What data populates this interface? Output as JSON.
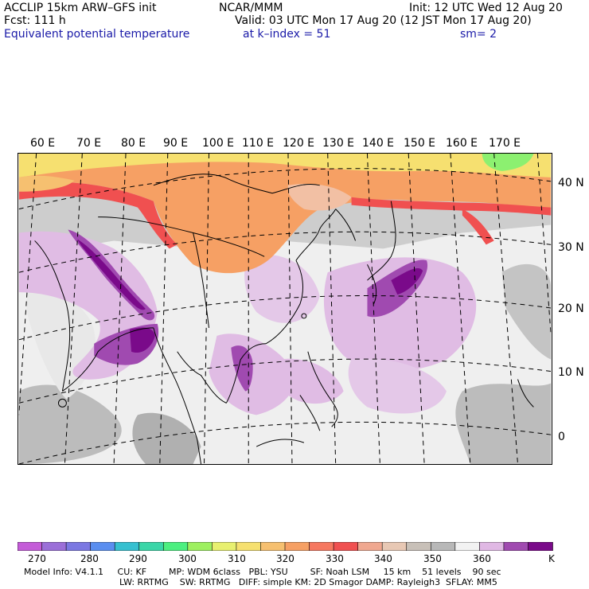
{
  "header": {
    "title": "ACCLIP 15km ARW–GFS init",
    "center": "NCAR/MMM",
    "init": "Init: 12 UTC Wed 12 Aug 20",
    "fcst": "Fcst:  111 h",
    "valid": "Valid: 03 UTC Mon 17 Aug 20 (12 JST Mon 17 Aug 20)",
    "field": "Equivalent potential temperature",
    "level": "at k–index =  51",
    "smooth": "sm= 2"
  },
  "axes": {
    "longitudes": [
      "60 E",
      "70 E",
      "80 E",
      "90 E",
      "100 E",
      "110 E",
      "120 E",
      "130 E",
      "140 E",
      "150 E",
      "160 E",
      "170 E"
    ],
    "latitudes": [
      "40 N",
      "30 N",
      "20 N",
      "10 N",
      "0"
    ]
  },
  "colorbar": {
    "colors": [
      "#c45cd8",
      "#9b6fd8",
      "#7b78e2",
      "#5a8ef0",
      "#36c0d0",
      "#3ad6a8",
      "#4cef80",
      "#9ef060",
      "#e8f070",
      "#f6e070",
      "#f6c070",
      "#f6a064",
      "#f67860",
      "#f05050",
      "#f0a890",
      "#e8c8b4",
      "#c8c0b8",
      "#b8b8b8",
      "#f2f2f2",
      "#e0b8e4",
      "#a04ab0",
      "#7a0a8a"
    ],
    "labels": [
      "270",
      "280",
      "290",
      "300",
      "310",
      "320",
      "330",
      "340",
      "350",
      "360",
      "K"
    ]
  },
  "model_info": {
    "line1": "Model Info: V4.1.1     CU: KF        MP: WDM 6class   PBL: YSU        SF: Noah LSM     15 km    51 levels    90 sec",
    "line2": "LW: RRTMG    SW: RRTMG   DIFF: simple KM: 2D Smagor DAMP: Rayleigh3  SFLAY: MM5"
  },
  "map_colors": {
    "ocean_gray": "#cacaca",
    "light": "#efefef",
    "dark_gray": "#a8a8a8",
    "lavender": "#e0bce4",
    "purple": "#a04ab0",
    "dark_purple": "#7a0a8a",
    "orange": "#f6a064",
    "red": "#f05050",
    "peach": "#f2c0a4",
    "yellow": "#f6e070",
    "green": "#8cf070"
  }
}
